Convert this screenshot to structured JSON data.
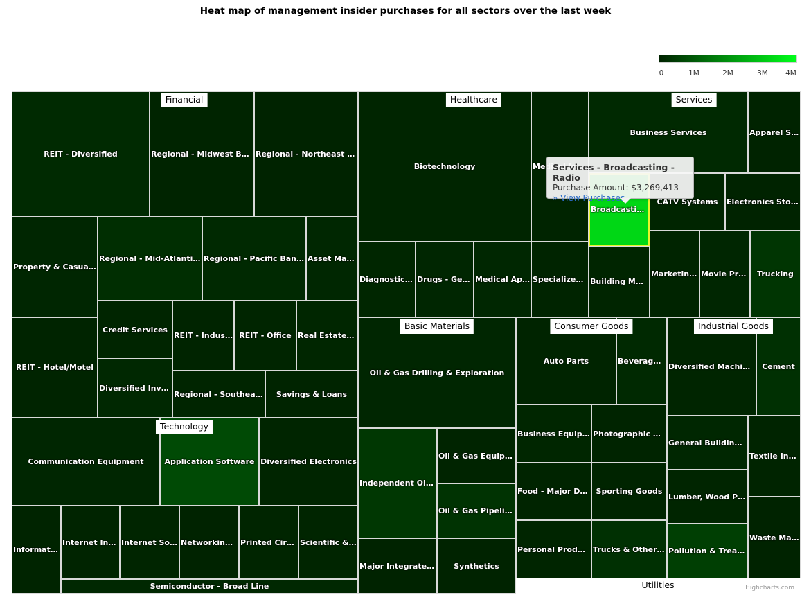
{
  "chart_data": {
    "type": "heatmap",
    "title": "Heat map of management insider purchases for all sectors over the last week",
    "value_label": "Purchase Amount",
    "color_axis": {
      "min": 0,
      "max": 4000000,
      "tick_labels": [
        "0",
        "1M",
        "2M",
        "3M",
        "4M"
      ],
      "tick_values": [
        0,
        1000000,
        2000000,
        3000000,
        4000000
      ],
      "min_color": "#002200",
      "max_color": "#00ff1a"
    },
    "sectors": [
      {
        "name": "Financial",
        "industries": [
          {
            "name": "REIT - Diversified",
            "value": 150000
          },
          {
            "name": "Regional - Midwest Banks",
            "value": 30000
          },
          {
            "name": "Regional - Northeast Banks",
            "value": 20000
          },
          {
            "name": "Property & Casualty Insurance",
            "value": 80000
          },
          {
            "name": "Regional - Mid-Atlantic Banks",
            "value": 220000
          },
          {
            "name": "Regional - Pacific Banks",
            "value": 120000
          },
          {
            "name": "Asset Management",
            "value": 90000
          },
          {
            "name": "Credit Services",
            "value": 60000
          },
          {
            "name": "REIT - Industrial",
            "value": 40000
          },
          {
            "name": "REIT - Office",
            "value": 50000
          },
          {
            "name": "Real Estate Development",
            "value": 70000
          },
          {
            "name": "REIT - Hotel/Motel",
            "value": 40000
          },
          {
            "name": "Diversified Investments",
            "value": 100000
          },
          {
            "name": "Regional - Southeast Banks",
            "value": 60000
          },
          {
            "name": "Savings & Loans",
            "value": 30000
          }
        ]
      },
      {
        "name": "Healthcare",
        "industries": [
          {
            "name": "Biotechnology",
            "value": 50000
          },
          {
            "name": "Medical Instruments",
            "value": 30000
          },
          {
            "name": "Diagnostic Substances",
            "value": 70000
          },
          {
            "name": "Drugs - Generic",
            "value": 80000
          },
          {
            "name": "Medical Appliances",
            "value": 90000
          },
          {
            "name": "Specialized Health Services",
            "value": 30000
          }
        ]
      },
      {
        "name": "Services",
        "industries": [
          {
            "name": "Business Services",
            "value": 120000
          },
          {
            "name": "Apparel Stores",
            "value": 20000
          },
          {
            "name": "Broadcasting - Radio",
            "value": 3269413
          },
          {
            "name": "CATV Systems",
            "value": 50000
          },
          {
            "name": "Electronics Stores",
            "value": 20000
          },
          {
            "name": "Building Materials Wholesale",
            "value": 60000
          },
          {
            "name": "Marketing Services",
            "value": 40000
          },
          {
            "name": "Movie Production",
            "value": 80000
          },
          {
            "name": "Trucking",
            "value": 350000
          }
        ]
      },
      {
        "name": "Basic Materials",
        "industries": [
          {
            "name": "Oil & Gas Drilling & Exploration",
            "value": 80000
          },
          {
            "name": "Independent Oil & Gas",
            "value": 380000
          },
          {
            "name": "Oil & Gas Equipment & Services",
            "value": 40000
          },
          {
            "name": "Oil & Gas Pipelines",
            "value": 300000
          },
          {
            "name": "Major Integrated Oil & Gas",
            "value": 20000
          },
          {
            "name": "Synthetics",
            "value": 10000
          }
        ]
      },
      {
        "name": "Consumer Goods",
        "industries": [
          {
            "name": "Auto Parts",
            "value": 30000
          },
          {
            "name": "Beverages - Wineries",
            "value": 120000
          },
          {
            "name": "Business Equipment",
            "value": 70000
          },
          {
            "name": "Photographic Equipment",
            "value": 30000
          },
          {
            "name": "Food - Major Diversified",
            "value": 30000
          },
          {
            "name": "Sporting Goods",
            "value": 40000
          },
          {
            "name": "Personal Products",
            "value": 60000
          },
          {
            "name": "Trucks & Other Vehicles",
            "value": 260000
          }
        ]
      },
      {
        "name": "Industrial Goods",
        "industries": [
          {
            "name": "Diversified Machinery",
            "value": 50000
          },
          {
            "name": "Cement",
            "value": 260000
          },
          {
            "name": "General Building Materials",
            "value": 90000
          },
          {
            "name": "Textile Industrial",
            "value": 40000
          },
          {
            "name": "Lumber, Wood Production",
            "value": 50000
          },
          {
            "name": "Waste Management",
            "value": 20000
          },
          {
            "name": "Pollution & Treatment Controls",
            "value": 520000
          }
        ]
      },
      {
        "name": "Technology",
        "industries": [
          {
            "name": "Communication Equipment",
            "value": 80000
          },
          {
            "name": "Application Software",
            "value": 720000
          },
          {
            "name": "Diversified Electronics",
            "value": 60000
          },
          {
            "name": "Information Technology Services",
            "value": 30000
          },
          {
            "name": "Internet Information Providers",
            "value": 40000
          },
          {
            "name": "Internet Software & Services",
            "value": 50000
          },
          {
            "name": "Networking & Communication Devices",
            "value": 20000
          },
          {
            "name": "Printed Circuit Boards",
            "value": 60000
          },
          {
            "name": "Scientific & Technical Instruments",
            "value": 50000
          },
          {
            "name": "Semiconductor - Broad Line",
            "value": 100000
          }
        ]
      },
      {
        "name": "Utilities",
        "industries": []
      }
    ]
  },
  "tooltip": {
    "title": "Services - Broadcasting - Radio",
    "amount_line": "Purchase Amount: $3,269,413",
    "link_text": "» View Purchases"
  },
  "credits": "Highcharts.com"
}
